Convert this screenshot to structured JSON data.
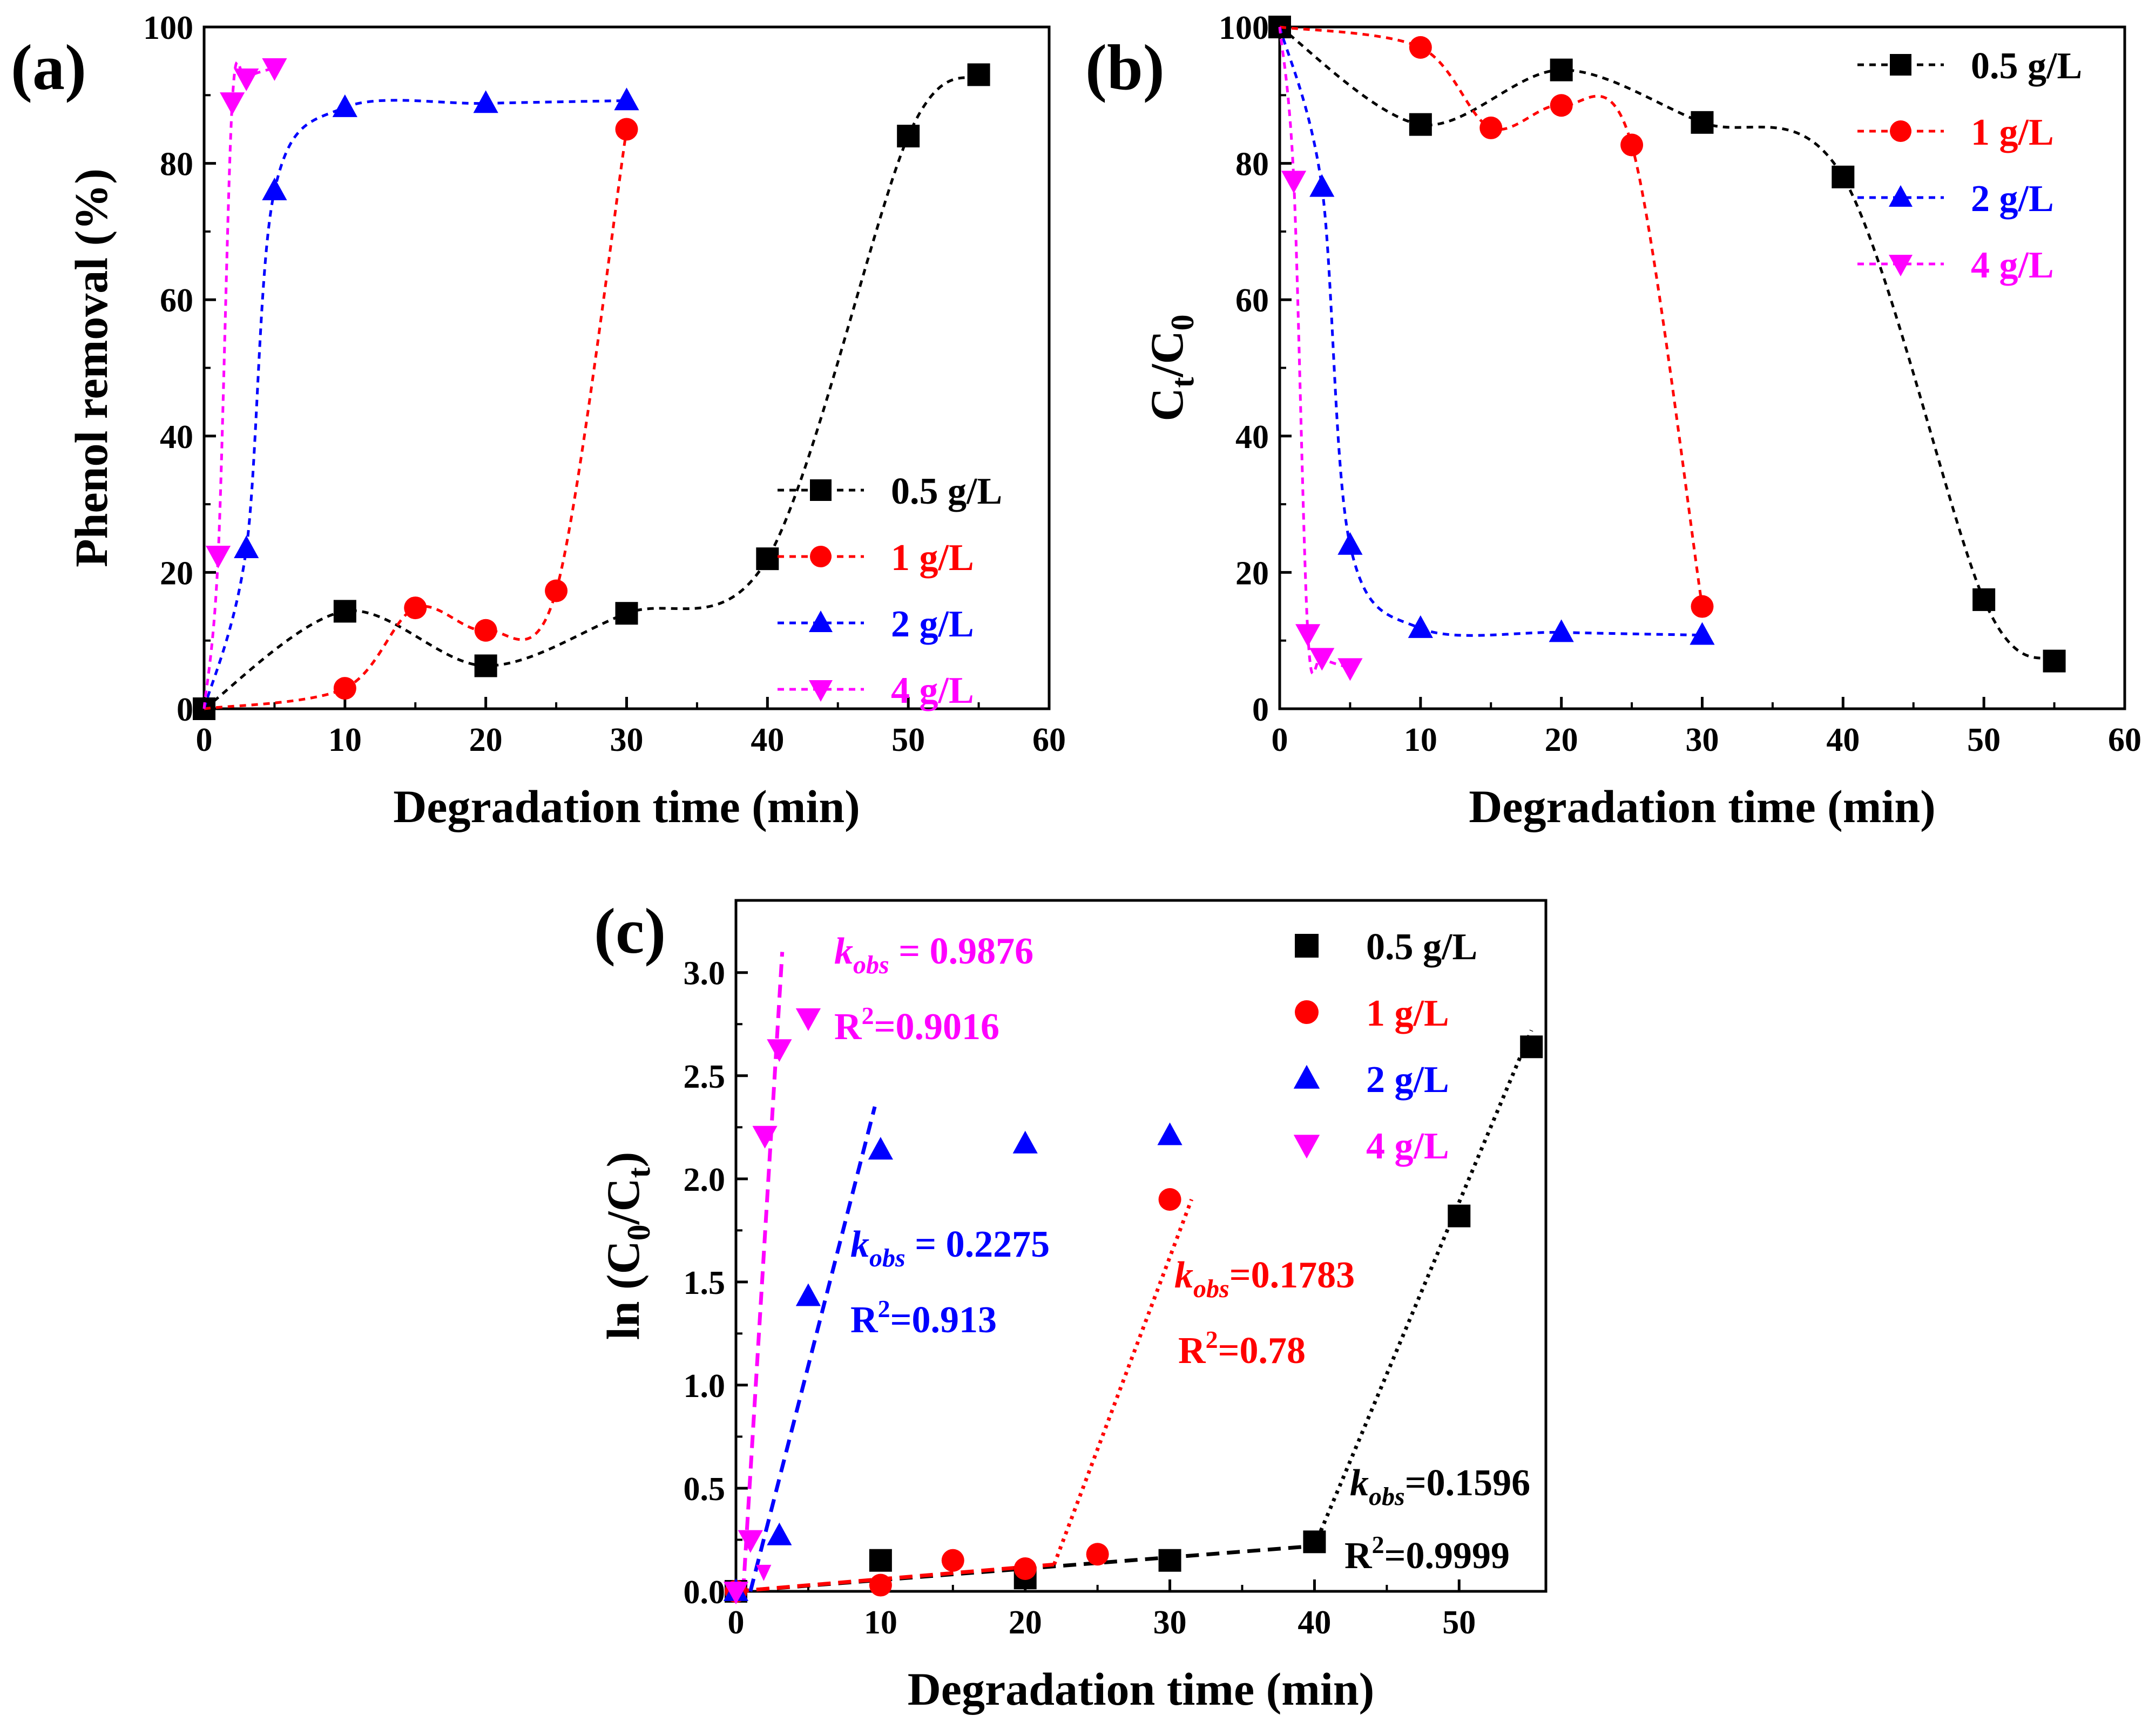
{
  "figure": {
    "colors": {
      "s05": "#000000",
      "s1": "#ff0000",
      "s2": "#0000ff",
      "s4": "#ff00ff"
    }
  },
  "chart_data": [
    {
      "panel": "(a)",
      "type": "line",
      "xlabel": "Degradation time (min)",
      "ylabel": "Phenol removal (%)",
      "xlim": [
        0,
        60
      ],
      "ylim": [
        0,
        100
      ],
      "xticks": [
        "0",
        "10",
        "20",
        "30",
        "40",
        "50",
        "60"
      ],
      "yticks": [
        "0",
        "20",
        "40",
        "60",
        "80",
        "100"
      ],
      "legend_position": "lower-right",
      "series": [
        {
          "name": "0.5 g/L",
          "marker": "square",
          "x": [
            0,
            10,
            20,
            30,
            40,
            50,
            55
          ],
          "y": [
            0,
            14.3,
            6.3,
            14,
            22,
            84,
            93
          ]
        },
        {
          "name": "1 g/L",
          "marker": "circle",
          "x": [
            0,
            10,
            15,
            20,
            25,
            30
          ],
          "y": [
            0,
            3,
            14.8,
            11.5,
            17.3,
            85
          ]
        },
        {
          "name": "2 g/L",
          "marker": "triangle-up",
          "x": [
            0,
            3,
            5,
            10,
            20,
            30
          ],
          "y": [
            0,
            23.5,
            76,
            88.2,
            88.8,
            89.2
          ]
        },
        {
          "name": "4 g/L",
          "marker": "triangle-down",
          "x": [
            0,
            1,
            2,
            3,
            5
          ],
          "y": [
            0,
            22.5,
            89,
            92.5,
            94
          ]
        }
      ]
    },
    {
      "panel": "(b)",
      "type": "line",
      "xlabel": "Degradation time (min)",
      "ylabel": "Ct/C0",
      "xlim": [
        0,
        60
      ],
      "ylim": [
        0,
        100
      ],
      "xticks": [
        "0",
        "10",
        "20",
        "30",
        "40",
        "50",
        "60"
      ],
      "yticks": [
        "0",
        "20",
        "40",
        "60",
        "80",
        "100"
      ],
      "legend_position": "top-right",
      "series": [
        {
          "name": "0.5 g/L",
          "marker": "square",
          "x": [
            0,
            10,
            20,
            30,
            40,
            50,
            55
          ],
          "y": [
            100,
            85.7,
            93.7,
            86,
            78,
            16,
            7
          ]
        },
        {
          "name": "1 g/L",
          "marker": "circle",
          "x": [
            0,
            10,
            15,
            20,
            25,
            30
          ],
          "y": [
            100,
            97,
            85.2,
            88.5,
            82.7,
            15
          ]
        },
        {
          "name": "2 g/L",
          "marker": "triangle-up",
          "x": [
            0,
            3,
            5,
            10,
            20,
            30
          ],
          "y": [
            100,
            76.5,
            24,
            11.8,
            11.2,
            10.8
          ]
        },
        {
          "name": "4 g/L",
          "marker": "triangle-down",
          "x": [
            0,
            1,
            2,
            3,
            5
          ],
          "y": [
            100,
            77.5,
            11,
            7.5,
            6
          ]
        }
      ]
    },
    {
      "panel": "(c)",
      "type": "scatter",
      "xlabel": "Degradation time (min)",
      "ylabel_main": "ln (C",
      "ylabel_sub1": "0",
      "ylabel_mid": "/C",
      "ylabel_sub2": "t",
      "ylabel_end": ")",
      "xlim": [
        0,
        56
      ],
      "ylim": [
        0,
        3.35
      ],
      "xticks": [
        "0",
        "10",
        "20",
        "30",
        "40",
        "50"
      ],
      "yticks": [
        "0.0",
        "0.5",
        "1.0",
        "1.5",
        "2.0",
        "2.5",
        "3.0"
      ],
      "legend_position": "top-right",
      "series": [
        {
          "name": "0.5 g/L",
          "marker": "square",
          "x": [
            0,
            10,
            20,
            30,
            40,
            50,
            55
          ],
          "y": [
            0,
            0.15,
            0.065,
            0.15,
            0.24,
            1.82,
            2.64
          ]
        },
        {
          "name": "1 g/L",
          "marker": "circle",
          "x": [
            0,
            10,
            15,
            20,
            25,
            30
          ],
          "y": [
            0,
            0.03,
            0.15,
            0.11,
            0.18,
            1.9
          ]
        },
        {
          "name": "2 g/L",
          "marker": "triangle-up",
          "x": [
            0,
            3,
            5,
            10,
            20,
            30
          ],
          "y": [
            0,
            0.27,
            1.43,
            2.14,
            2.17,
            2.21
          ]
        },
        {
          "name": "4 g/L",
          "marker": "triangle-down",
          "x": [
            0,
            1,
            2,
            3,
            5
          ],
          "y": [
            0,
            0.25,
            2.21,
            2.63,
            2.78
          ]
        }
      ],
      "fits": [
        {
          "series": "0.5 g/L",
          "style": "dashed",
          "x": [
            0,
            40
          ],
          "y": [
            0,
            0.22
          ]
        },
        {
          "series": "0.5 g/L",
          "style": "dotted",
          "x": [
            40,
            55
          ],
          "y": [
            0.22,
            2.72
          ]
        },
        {
          "series": "1 g/L",
          "style": "dashed",
          "x": [
            0,
            22
          ],
          "y": [
            0,
            0.13
          ]
        },
        {
          "series": "1 g/L",
          "style": "dotted",
          "x": [
            22,
            31.5
          ],
          "y": [
            0.13,
            1.9
          ]
        },
        {
          "series": "2 g/L",
          "style": "dashed",
          "x": [
            1,
            9.6
          ],
          "y": [
            0,
            2.35
          ]
        },
        {
          "series": "4 g/L",
          "style": "dashed",
          "x": [
            0.5,
            3.2
          ],
          "y": [
            0,
            3.1
          ]
        }
      ],
      "annotations": [
        {
          "series": "4 g/L",
          "k": "0.9876",
          "r2": "0.9016"
        },
        {
          "series": "2 g/L",
          "k": "0.2275",
          "r2": "0.913"
        },
        {
          "series": "1 g/L",
          "k": "0.1783",
          "r2": "0.78"
        },
        {
          "series": "0.5 g/L",
          "k": "0.1596",
          "r2": "0.9999"
        }
      ],
      "annotation_text": {
        "k_italic": "k",
        "k_sub": "obs",
        "eq": "=",
        "eq_spaced": " = ",
        "r": "R",
        "r_sup": "2"
      }
    }
  ]
}
